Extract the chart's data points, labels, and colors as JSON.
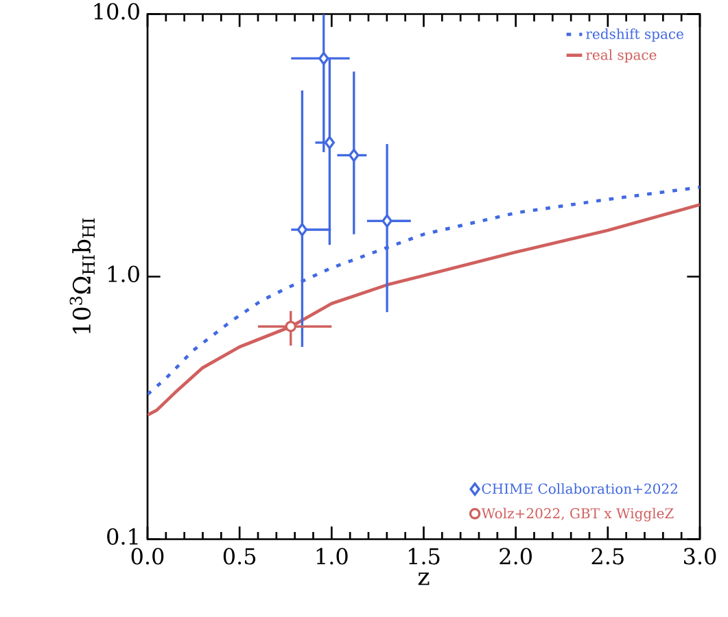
{
  "chart_data": {
    "type": "line",
    "xlabel": "z",
    "ylabel": "10$^{3}$Ω$_{HI}$b$_{HI}$",
    "xlim": [
      0,
      3
    ],
    "ylim": [
      0.1,
      10
    ],
    "log": "y",
    "xticks": [
      {
        "value": 0,
        "label": "0.0"
      },
      0.5,
      {
        "value": 1,
        "label": "1.0"
      },
      1.5,
      {
        "value": 2,
        "label": "2.0"
      },
      2.5,
      {
        "value": 3,
        "label": "3.0"
      }
    ],
    "yticks": [
      0.1,
      {
        "value": 1,
        "label": "1.0"
      },
      {
        "value": 10,
        "label": "10.0"
      }
    ],
    "grid": false,
    "legend": "right",
    "series": [
      {
        "name": "redshift space",
        "line_style": "dotted",
        "color": "#4169e1",
        "x": [
          0,
          0.1,
          0.25,
          0.456,
          0.618,
          0.75,
          1.0,
          1.3,
          1.5,
          2.0,
          2.5,
          3.0
        ],
        "values": [
          0.356,
          0.41,
          0.525,
          0.678,
          0.81,
          0.9,
          1.08,
          1.29,
          1.45,
          1.75,
          1.97,
          2.19
        ]
      },
      {
        "name": "real space",
        "line_style": "solid",
        "color": "#d0605e",
        "x": [
          0,
          0.05,
          0.15,
          0.3,
          0.5,
          0.78,
          1.0,
          1.3,
          1.5,
          2.0,
          2.5,
          3.0
        ],
        "values": [
          0.297,
          0.31,
          0.362,
          0.45,
          0.54,
          0.646,
          0.79,
          0.93,
          1.01,
          1.24,
          1.5,
          1.88
        ]
      },
      {
        "name": "CHIME Collaboration+2022",
        "type": "scatter",
        "marker": "diamond",
        "color": "#4169e1",
        "x": [
          0.957,
          0.989,
          1.121,
          0.84,
          1.301
        ],
        "values": [
          6.78,
          3.24,
          2.9,
          1.51,
          1.63
        ],
        "errors": [
          [
            2.98,
            10
          ],
          [
            1.32,
            6.77
          ],
          [
            1.45,
            6.04
          ],
          [
            0.54,
            5.12
          ],
          [
            0.733,
            3.2
          ]
        ],
        "xerrors": [
          [
            0.78,
            1.098
          ],
          [
            0.911,
            0.989
          ],
          [
            1.03,
            1.19
          ],
          [
            0.78,
            0.996
          ],
          [
            1.192,
            1.43
          ]
        ]
      },
      {
        "name": "Wolz+2022, GBT x WiggleZ",
        "type": "scatter",
        "marker": "circle",
        "color": "#d0605e",
        "x": [
          0.778
        ],
        "values": [
          0.646
        ],
        "errors": [
          [
            0.546,
            0.74
          ]
        ],
        "xerrors": [
          [
            0.6,
            1.0
          ]
        ]
      }
    ]
  }
}
